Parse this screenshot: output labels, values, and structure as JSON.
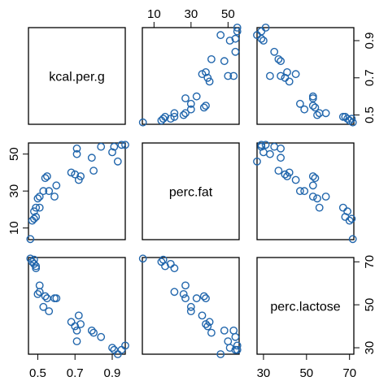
{
  "chart_data": {
    "type": "scatter",
    "kind": "pairs-matrix",
    "title": "",
    "variables": [
      "kcal.per.g",
      "perc.fat",
      "perc.lactose"
    ],
    "ticks": {
      "kcal.per.g": [
        0.5,
        0.7,
        0.9
      ],
      "perc.fat": [
        10,
        30,
        50
      ],
      "perc.lactose": [
        30,
        50,
        70
      ]
    },
    "tick_labels": {
      "kcal.per.g": [
        "0.5",
        "0.7",
        "0.9"
      ],
      "perc.fat": [
        "10",
        "30",
        "50"
      ],
      "perc.lactose": [
        "30",
        "50",
        "70"
      ]
    },
    "ranges": {
      "kcal.per.g": [
        0.45,
        0.97
      ],
      "perc.fat": [
        3.7,
        56
      ],
      "perc.lactose": [
        27,
        72
      ]
    },
    "marker": "open-circle",
    "point_color": "#2166ac",
    "observations": [
      {
        "kcal.per.g": 0.46,
        "perc.fat": 4.0,
        "perc.lactose": 71.5
      },
      {
        "kcal.per.g": 0.47,
        "perc.fat": 14.0,
        "perc.lactose": 70.0
      },
      {
        "kcal.per.g": 0.48,
        "perc.fat": 15.0,
        "perc.lactose": 71.0
      },
      {
        "kcal.per.g": 0.48,
        "perc.fat": 19.0,
        "perc.lactose": 69.0
      },
      {
        "kcal.per.g": 0.49,
        "perc.fat": 16.0,
        "perc.lactose": 68.0
      },
      {
        "kcal.per.g": 0.49,
        "perc.fat": 21.0,
        "perc.lactose": 67.0
      },
      {
        "kcal.per.g": 0.5,
        "perc.fat": 26.0,
        "perc.lactose": 55.0
      },
      {
        "kcal.per.g": 0.51,
        "perc.fat": 21.0,
        "perc.lactose": 56.0
      },
      {
        "kcal.per.g": 0.51,
        "perc.fat": 27.0,
        "perc.lactose": 59.0
      },
      {
        "kcal.per.g": 0.53,
        "perc.fat": 30.0,
        "perc.lactose": 49.0
      },
      {
        "kcal.per.g": 0.54,
        "perc.fat": 37.0,
        "perc.lactose": 54.0
      },
      {
        "kcal.per.g": 0.55,
        "perc.fat": 38.0,
        "perc.lactose": 53.0
      },
      {
        "kcal.per.g": 0.56,
        "perc.fat": 30.0,
        "perc.lactose": 47.0
      },
      {
        "kcal.per.g": 0.59,
        "perc.fat": 27.0,
        "perc.lactose": 53.0
      },
      {
        "kcal.per.g": 0.6,
        "perc.fat": 33.0,
        "perc.lactose": 53.0
      },
      {
        "kcal.per.g": 0.68,
        "perc.fat": 40.0,
        "perc.lactose": 42.0
      },
      {
        "kcal.per.g": 0.7,
        "perc.fat": 39.0,
        "perc.lactose": 40.0
      },
      {
        "kcal.per.g": 0.71,
        "perc.fat": 50.0,
        "perc.lactose": 33.0
      },
      {
        "kcal.per.g": 0.71,
        "perc.fat": 53.0,
        "perc.lactose": 38.0
      },
      {
        "kcal.per.g": 0.72,
        "perc.fat": 36.0,
        "perc.lactose": 45.0
      },
      {
        "kcal.per.g": 0.73,
        "perc.fat": 38.0,
        "perc.lactose": 41.0
      },
      {
        "kcal.per.g": 0.79,
        "perc.fat": 48.0,
        "perc.lactose": 38.0
      },
      {
        "kcal.per.g": 0.8,
        "perc.fat": 41.0,
        "perc.lactose": 37.0
      },
      {
        "kcal.per.g": 0.84,
        "perc.fat": 54.0,
        "perc.lactose": 35.0
      },
      {
        "kcal.per.g": 0.9,
        "perc.fat": 51.0,
        "perc.lactose": 30.0
      },
      {
        "kcal.per.g": 0.91,
        "perc.fat": 54.0,
        "perc.lactose": 29.0
      },
      {
        "kcal.per.g": 0.93,
        "perc.fat": 46.0,
        "perc.lactose": 27.0
      },
      {
        "kcal.per.g": 0.95,
        "perc.fat": 55.0,
        "perc.lactose": 29.0
      },
      {
        "kcal.per.g": 0.97,
        "perc.fat": 55.0,
        "perc.lactose": 31.0
      }
    ]
  }
}
